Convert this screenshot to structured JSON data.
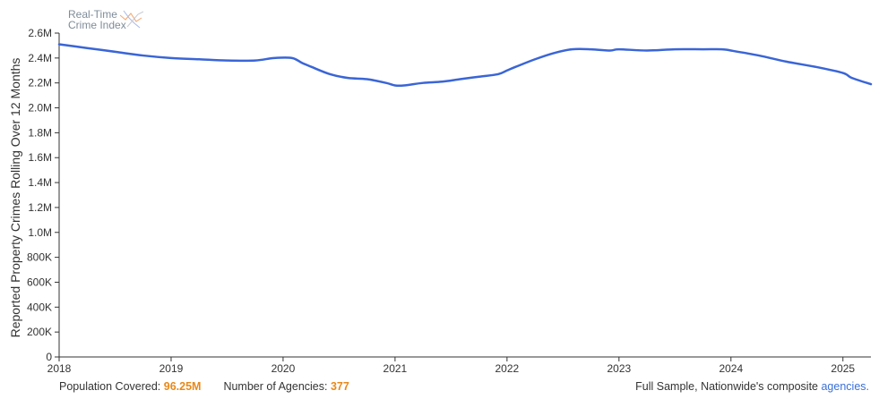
{
  "logo": {
    "line1": "Real-Time",
    "line2": "Crime Index"
  },
  "chart_data": {
    "type": "line",
    "title": "",
    "xlabel": "",
    "ylabel": "Reported Property Crimes Rolling Over 12 Months",
    "xlim": [
      2018.0,
      2025.25
    ],
    "ylim": [
      0,
      2600000
    ],
    "x_ticks": [
      2018,
      2019,
      2020,
      2021,
      2022,
      2023,
      2024,
      2025
    ],
    "x_tick_labels": [
      "2018",
      "2019",
      "2020",
      "2021",
      "2022",
      "2023",
      "2024",
      "2025"
    ],
    "y_ticks": [
      0,
      200000,
      400000,
      600000,
      800000,
      1000000,
      1200000,
      1400000,
      1600000,
      1800000,
      2000000,
      2200000,
      2400000,
      2600000
    ],
    "y_tick_labels": [
      "0",
      "200K",
      "400K",
      "600K",
      "800K",
      "1.0M",
      "1.2M",
      "1.4M",
      "1.6M",
      "1.8M",
      "2.0M",
      "2.2M",
      "2.4M",
      "2.6M"
    ],
    "grid": false,
    "line_color": "#3a65d6",
    "series": [
      {
        "x": [
          2018.0,
          2018.25,
          2018.5,
          2018.75,
          2019.0,
          2019.25,
          2019.5,
          2019.75,
          2019.92,
          2020.08,
          2020.17,
          2020.25,
          2020.42,
          2020.58,
          2020.75,
          2020.92,
          2021.0,
          2021.08,
          2021.25,
          2021.42,
          2021.58,
          2021.75,
          2021.92,
          2022.0,
          2022.08,
          2022.25,
          2022.42,
          2022.58,
          2022.75,
          2022.92,
          2023.0,
          2023.25,
          2023.5,
          2023.75,
          2023.92,
          2024.0,
          2024.25,
          2024.5,
          2024.75,
          2025.0,
          2025.08,
          2025.25
        ],
        "y": [
          2510000,
          2480000,
          2450000,
          2420000,
          2400000,
          2390000,
          2380000,
          2380000,
          2400000,
          2400000,
          2360000,
          2330000,
          2270000,
          2240000,
          2230000,
          2200000,
          2180000,
          2180000,
          2200000,
          2210000,
          2230000,
          2250000,
          2270000,
          2300000,
          2330000,
          2390000,
          2440000,
          2470000,
          2470000,
          2460000,
          2470000,
          2460000,
          2470000,
          2470000,
          2470000,
          2460000,
          2420000,
          2370000,
          2330000,
          2280000,
          2240000,
          2190000
        ]
      }
    ]
  },
  "footer": {
    "pop_label": "Population Covered:",
    "pop_value": "96.25M",
    "agencies_label": "Number of Agencies:",
    "agencies_value": "377",
    "sample_text": "Full Sample, Nationwide's composite",
    "agencies_link": "agencies."
  }
}
